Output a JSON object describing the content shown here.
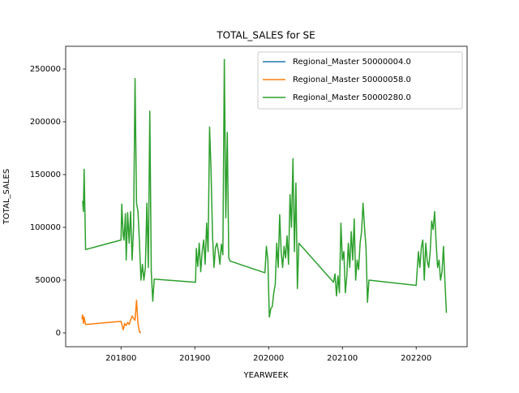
{
  "chart_data": {
    "type": "line",
    "title": "TOTAL_SALES for SE",
    "xlabel": "YEARWEEK",
    "ylabel": "TOTAL_SALES",
    "xlim": [
      201725,
      202269
    ],
    "ylim": [
      -13077,
      271538
    ],
    "xticks": [
      201800,
      201900,
      202000,
      202100,
      202200
    ],
    "yticks": [
      0,
      50000,
      100000,
      150000,
      200000,
      250000
    ],
    "legend": "upper right",
    "series": [
      {
        "name": "Regional_Master 50000004.0",
        "color": "#1f77b4",
        "x": [
          201825,
          201827
        ],
        "values": [
          1000,
          200
        ]
      },
      {
        "name": "Regional_Master 50000058.0",
        "color": "#ff7f0e",
        "x": [
          201747,
          201748,
          201749,
          201750,
          201752,
          201800,
          201803,
          201805,
          201807,
          201809,
          201811,
          201813,
          201815,
          201817,
          201819,
          201821,
          201823,
          201825,
          201827
        ],
        "values": [
          13000,
          17000,
          9000,
          15000,
          8000,
          11000,
          3000,
          9000,
          7000,
          10000,
          8000,
          12000,
          16000,
          14000,
          12000,
          31000,
          9000,
          1000,
          200
        ]
      },
      {
        "name": "Regional_Master 50000280.0",
        "color": "#2ca02c",
        "x": [
          201748,
          201749,
          201750,
          201751,
          201752,
          201800,
          201801,
          201803,
          201804,
          201806,
          201807,
          201809,
          201811,
          201813,
          201815,
          201817,
          201819,
          201821,
          201823,
          201825,
          201827,
          201829,
          201831,
          201833,
          201835,
          201837,
          201839,
          201841,
          201843,
          201845,
          201901,
          201902,
          201904,
          201906,
          201908,
          201910,
          201912,
          201914,
          201916,
          201918,
          201920,
          201922,
          201924,
          201926,
          201928,
          201930,
          201932,
          201934,
          201936,
          201938,
          201940,
          201942,
          201944,
          201946,
          201948,
          201995,
          201997,
          201999,
          202001,
          202003,
          202005,
          202007,
          202009,
          202011,
          202013,
          202015,
          202017,
          202019,
          202021,
          202023,
          202025,
          202027,
          202029,
          202031,
          202033,
          202035,
          202037,
          202039,
          202041,
          202088,
          202090,
          202092,
          202094,
          202096,
          202098,
          202100,
          202102,
          202104,
          202106,
          202108,
          202110,
          202112,
          202114,
          202116,
          202118,
          202120,
          202122,
          202124,
          202126,
          202128,
          202130,
          202132,
          202134,
          202136,
          202200,
          202203,
          202205,
          202207,
          202209,
          202211,
          202213,
          202215,
          202217,
          202219,
          202221,
          202223,
          202225,
          202227,
          202229,
          202231,
          202233,
          202235,
          202237,
          202239,
          202241
        ],
        "values": [
          125000,
          115000,
          155000,
          117000,
          79000,
          88000,
          122000,
          92000,
          88000,
          113000,
          69000,
          114000,
          85000,
          115000,
          69000,
          100000,
          241000,
          123000,
          115000,
          85000,
          50000,
          65000,
          50000,
          62000,
          123000,
          62000,
          210000,
          58000,
          30000,
          51000,
          48000,
          80000,
          63000,
          85000,
          58000,
          77000,
          88000,
          65000,
          104000,
          77000,
          195000,
          154000,
          92000,
          62000,
          81000,
          85000,
          77000,
          65000,
          84000,
          74000,
          259000,
          109000,
          190000,
          71000,
          68000,
          57000,
          82000,
          69000,
          15000,
          23000,
          25000,
          38000,
          46000,
          85000,
          62000,
          112000,
          77000,
          62000,
          82000,
          71000,
          92000,
          65000,
          131000,
          100000,
          165000,
          77000,
          142000,
          42000,
          85000,
          48000,
          56000,
          35000,
          54000,
          38000,
          104000,
          69000,
          77000,
          38000,
          54000,
          85000,
          62000,
          96000,
          69000,
          108000,
          50000,
          69000,
          60000,
          85000,
          96000,
          123000,
          100000,
          81000,
          29000,
          50000,
          45000,
          77000,
          62000,
          81000,
          88000,
          50000,
          85000,
          68000,
          62000,
          77000,
          106000,
          98000,
          115000,
          86000,
          62000,
          69000,
          50000,
          58000,
          82000,
          48000,
          19000
        ]
      }
    ]
  }
}
